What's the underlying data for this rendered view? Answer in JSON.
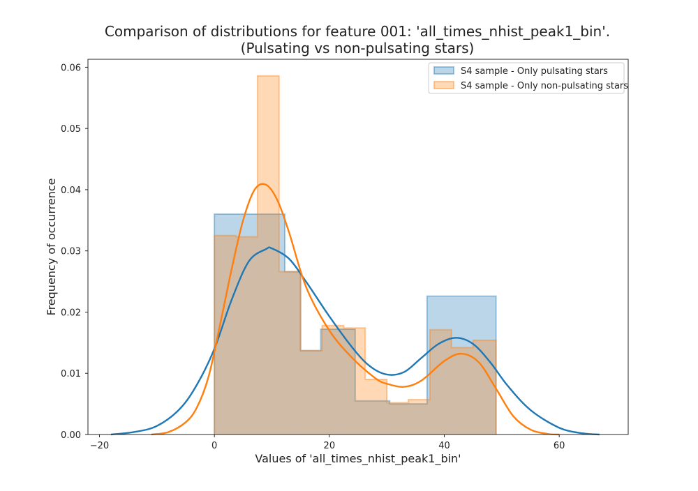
{
  "chart_data": {
    "type": "histogram",
    "title_line1": "Comparison of distributions for feature 001: 'all_times_nhist_peak1_bin'.",
    "title_line2": "(Pulsating vs non-pulsating stars)",
    "xlabel": "Values of 'all_times_nhist_peak1_bin'",
    "ylabel": "Frequency of occurrence",
    "xlim": [
      -22,
      72
    ],
    "ylim": [
      0,
      0.0613
    ],
    "xticks": [
      -20,
      0,
      20,
      40,
      60
    ],
    "xtick_labels": [
      "−20",
      "0",
      "20",
      "40",
      "60"
    ],
    "yticks": [
      0,
      0.01,
      0.02,
      0.03,
      0.04,
      0.05,
      0.06
    ],
    "ytick_labels": [
      "0.00",
      "0.01",
      "0.02",
      "0.03",
      "0.04",
      "0.05",
      "0.06"
    ],
    "grid": false,
    "legend_position": "top-right",
    "series": [
      {
        "name": "S4 sample - Only pulsating stars",
        "color": "#1f77b4",
        "bin_edges": [
          0,
          12.25,
          15,
          18.5,
          20,
          24.5,
          30.5,
          37,
          49
        ],
        "densities": [
          0.036,
          0.0266,
          0.0137,
          0.0172,
          0.0172,
          0.0055,
          0.005,
          0.0226
        ],
        "kde_x": [
          -18,
          -14,
          -10,
          -6,
          -3,
          0,
          3,
          6,
          9,
          10,
          13,
          16,
          20,
          24,
          27,
          30,
          33,
          36,
          39,
          42,
          45,
          48,
          51,
          55,
          60,
          64,
          67
        ],
        "kde_y": [
          0.0,
          0.0004,
          0.0014,
          0.0042,
          0.0082,
          0.014,
          0.022,
          0.0283,
          0.0303,
          0.0304,
          0.0287,
          0.0249,
          0.0193,
          0.0142,
          0.0112,
          0.0098,
          0.0102,
          0.0125,
          0.0148,
          0.0158,
          0.0148,
          0.0118,
          0.008,
          0.004,
          0.0011,
          0.0002,
          0.0
        ]
      },
      {
        "name": "S4 sample - Only non-pulsating stars",
        "color": "#ff7f0e",
        "bin_edges": [
          0,
          3.75,
          7.5,
          11.25,
          15,
          18.75,
          22.5,
          26.25,
          30,
          33.75,
          37.5,
          41.25,
          45,
          49
        ],
        "densities": [
          0.0325,
          0.0323,
          0.0586,
          0.0266,
          0.0137,
          0.0178,
          0.0174,
          0.009,
          0.0052,
          0.0057,
          0.0171,
          0.0142,
          0.0154
        ],
        "kde_x": [
          -11,
          -8,
          -5,
          -3,
          -1,
          1,
          3,
          5,
          7,
          9,
          11,
          13,
          16,
          20,
          24,
          28,
          30,
          33,
          36,
          40,
          43,
          46,
          49,
          52,
          55,
          58,
          60
        ],
        "kde_y": [
          0.0,
          0.0004,
          0.002,
          0.0045,
          0.0095,
          0.018,
          0.027,
          0.035,
          0.04,
          0.0408,
          0.0382,
          0.033,
          0.024,
          0.017,
          0.0125,
          0.0092,
          0.0083,
          0.0078,
          0.0088,
          0.012,
          0.0132,
          0.0118,
          0.0075,
          0.003,
          0.0008,
          0.0001,
          0.0
        ]
      }
    ]
  }
}
